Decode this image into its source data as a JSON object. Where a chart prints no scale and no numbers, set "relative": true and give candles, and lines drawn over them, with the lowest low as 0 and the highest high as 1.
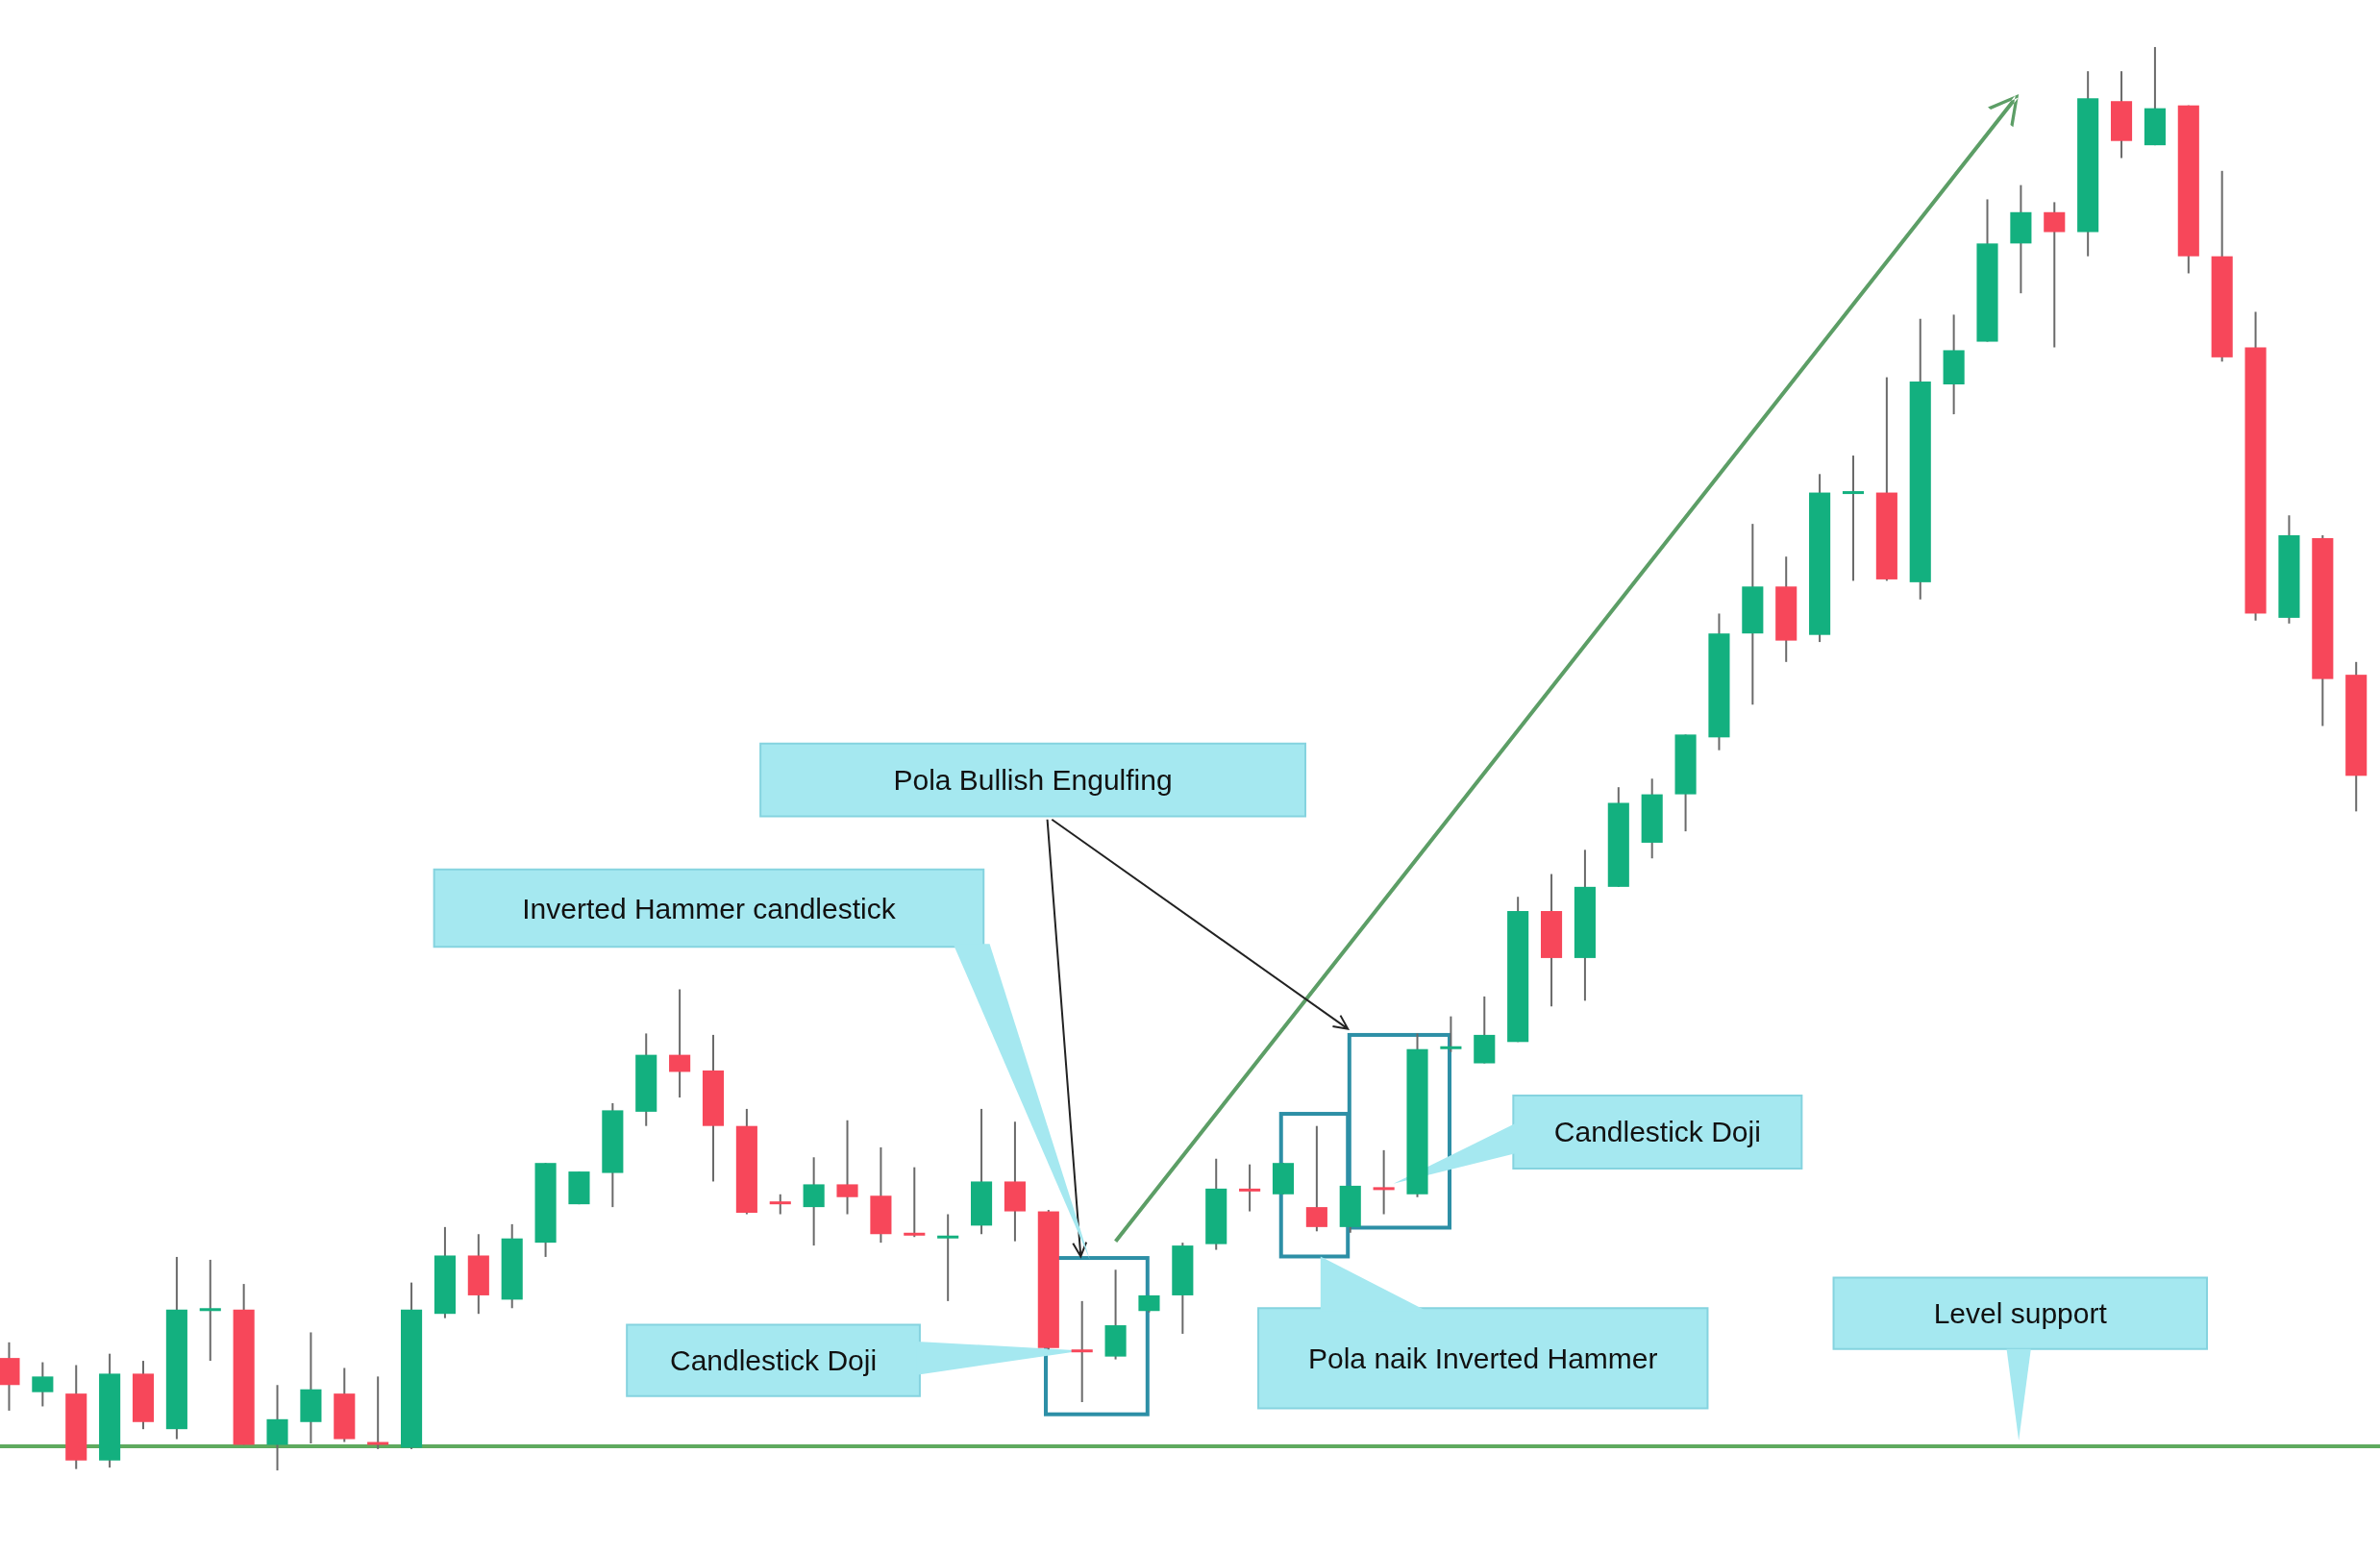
{
  "chart_data": {
    "type": "candlestick",
    "relative": true,
    "categories": [
      null,
      null,
      null,
      null,
      null,
      null,
      null,
      null,
      null,
      null,
      null,
      null,
      null,
      null,
      null,
      null,
      null,
      null,
      null,
      null,
      null,
      null,
      null,
      null,
      null,
      null,
      null,
      null,
      null,
      null,
      null,
      null,
      null,
      null,
      null,
      null,
      null,
      null,
      null,
      null,
      null,
      null,
      null,
      null,
      null,
      null,
      null,
      null,
      null,
      null,
      null,
      null,
      null,
      null,
      null,
      null,
      null,
      null,
      null,
      null,
      null,
      null,
      null,
      null,
      null,
      null,
      null,
      null,
      null,
      null,
      null
    ],
    "ohlc": [
      [
        0.079,
        0.09,
        0.042,
        0.06
      ],
      [
        0.055,
        0.076,
        0.045,
        0.066
      ],
      [
        0.054,
        0.074,
        0.001,
        0.007
      ],
      [
        0.007,
        0.082,
        0.002,
        0.068
      ],
      [
        0.068,
        0.077,
        0.029,
        0.034
      ],
      [
        0.029,
        0.15,
        0.022,
        0.113
      ],
      [
        0.113,
        0.148,
        0.077,
        0.114
      ],
      [
        0.113,
        0.131,
        0.018,
        0.018
      ],
      [
        0.018,
        0.06,
        0.0,
        0.036
      ],
      [
        0.034,
        0.097,
        0.019,
        0.057
      ],
      [
        0.054,
        0.072,
        0.02,
        0.022
      ],
      [
        0.02,
        0.066,
        0.015,
        0.019
      ],
      [
        0.016,
        0.132,
        0.015,
        0.113
      ],
      [
        0.11,
        0.171,
        0.107,
        0.151
      ],
      [
        0.151,
        0.166,
        0.11,
        0.123
      ],
      [
        0.12,
        0.173,
        0.114,
        0.163
      ],
      [
        0.16,
        0.216,
        0.15,
        0.216
      ],
      [
        0.187,
        0.21,
        0.187,
        0.21
      ],
      [
        0.209,
        0.258,
        0.185,
        0.253
      ],
      [
        0.252,
        0.307,
        0.242,
        0.292
      ],
      [
        0.292,
        0.338,
        0.262,
        0.28
      ],
      [
        0.281,
        0.306,
        0.203,
        0.242
      ],
      [
        0.242,
        0.254,
        0.18,
        0.181
      ],
      [
        0.189,
        0.194,
        0.18,
        0.188
      ],
      [
        0.185,
        0.22,
        0.158,
        0.201
      ],
      [
        0.201,
        0.246,
        0.18,
        0.192
      ],
      [
        0.193,
        0.227,
        0.16,
        0.166
      ],
      [
        0.167,
        0.213,
        0.164,
        0.166
      ],
      [
        0.164,
        0.18,
        0.119,
        0.165
      ],
      [
        0.172,
        0.254,
        0.166,
        0.203
      ],
      [
        0.203,
        0.245,
        0.161,
        0.182
      ],
      [
        0.182,
        0.183,
        0.085,
        0.086
      ],
      [
        0.085,
        0.119,
        0.048,
        0.084
      ],
      [
        0.08,
        0.141,
        0.078,
        0.102
      ],
      [
        0.112,
        0.123,
        0.111,
        0.123
      ],
      [
        0.123,
        0.16,
        0.096,
        0.158
      ],
      [
        0.159,
        0.219,
        0.155,
        0.198
      ],
      [
        0.198,
        0.215,
        0.182,
        0.197
      ],
      [
        0.194,
        0.216,
        0.194,
        0.216
      ],
      [
        0.185,
        0.242,
        0.168,
        0.171
      ],
      [
        0.171,
        0.2,
        0.167,
        0.2
      ],
      [
        0.199,
        0.225,
        0.18,
        0.198
      ],
      [
        0.194,
        0.307,
        0.192,
        0.296
      ],
      [
        0.297,
        0.319,
        0.294,
        0.298
      ],
      [
        0.286,
        0.333,
        0.286,
        0.306
      ],
      [
        0.301,
        0.403,
        0.301,
        0.393
      ],
      [
        0.393,
        0.419,
        0.326,
        0.36
      ],
      [
        0.36,
        0.436,
        0.33,
        0.41
      ],
      [
        0.41,
        0.48,
        0.41,
        0.469
      ],
      [
        0.441,
        0.486,
        0.43,
        0.475
      ],
      [
        0.475,
        0.517,
        0.449,
        0.517
      ],
      [
        0.515,
        0.602,
        0.506,
        0.588
      ],
      [
        0.588,
        0.665,
        0.538,
        0.621
      ],
      [
        0.621,
        0.642,
        0.568,
        0.583
      ],
      [
        0.587,
        0.7,
        0.582,
        0.687
      ],
      [
        0.687,
        0.713,
        0.625,
        0.688
      ],
      [
        0.687,
        0.768,
        0.625,
        0.626
      ],
      [
        0.624,
        0.809,
        0.612,
        0.765
      ],
      [
        0.763,
        0.812,
        0.742,
        0.787
      ],
      [
        0.793,
        0.893,
        0.793,
        0.862
      ],
      [
        0.862,
        0.903,
        0.827,
        0.884
      ],
      [
        0.884,
        0.891,
        0.789,
        0.87
      ],
      [
        0.87,
        0.983,
        0.853,
        0.964
      ],
      [
        0.962,
        0.983,
        0.922,
        0.934
      ],
      [
        0.931,
        1.0,
        0.931,
        0.957
      ],
      [
        0.959,
        0.959,
        0.841,
        0.853
      ],
      [
        0.853,
        0.913,
        0.779,
        0.782
      ],
      [
        0.789,
        0.814,
        0.597,
        0.602
      ],
      [
        0.599,
        0.671,
        0.595,
        0.657
      ],
      [
        0.655,
        0.657,
        0.523,
        0.556
      ],
      [
        0.559,
        0.568,
        0.463,
        0.488
      ]
    ],
    "colors": [
      "#f7475a",
      "#13b07f",
      "#f7475a",
      "#13b07f",
      "#f7475a",
      "#13b07f",
      "#13b07f",
      "#f7475a",
      "#13b07f",
      "#13b07f",
      "#f7475a",
      "#f7475a",
      "#13b07f",
      "#13b07f",
      "#f7475a",
      "#13b07f",
      "#13b07f",
      "#13b07f",
      "#13b07f",
      "#13b07f",
      "#f7475a",
      "#f7475a",
      "#f7475a",
      "#f7475a",
      "#13b07f",
      "#f7475a",
      "#f7475a",
      "#f7475a",
      "#13b07f",
      "#13b07f",
      "#f7475a",
      "#f7475a",
      "#f7475a",
      "#13b07f",
      "#13b07f",
      "#13b07f",
      "#13b07f",
      "#f7475a",
      "#13b07f",
      "#f7475a",
      "#13b07f",
      "#f7475a",
      "#13b07f",
      "#13b07f",
      "#13b07f",
      "#13b07f",
      "#f7475a",
      "#13b07f",
      "#13b07f",
      "#13b07f",
      "#13b07f",
      "#13b07f",
      "#13b07f",
      "#f7475a",
      "#13b07f",
      "#13b07f",
      "#f7475a",
      "#13b07f",
      "#13b07f",
      "#13b07f",
      "#13b07f",
      "#f7475a",
      "#13b07f",
      "#f7475a",
      "#13b07f",
      "#f7475a",
      "#f7475a",
      "#f7475a",
      "#13b07f",
      "#f7475a",
      "#f7475a"
    ],
    "ref_lines": [
      {
        "axis": "y",
        "value": 0.017,
        "label": "Level support",
        "color": "#5faa5f"
      }
    ],
    "annotations": [
      "Pola Bullish Engulfing",
      "Inverted Hammer candlestick",
      "Candlestick Doji",
      "Candlestick Doji",
      "Pola naik Inverted Hammer"
    ]
  }
}
